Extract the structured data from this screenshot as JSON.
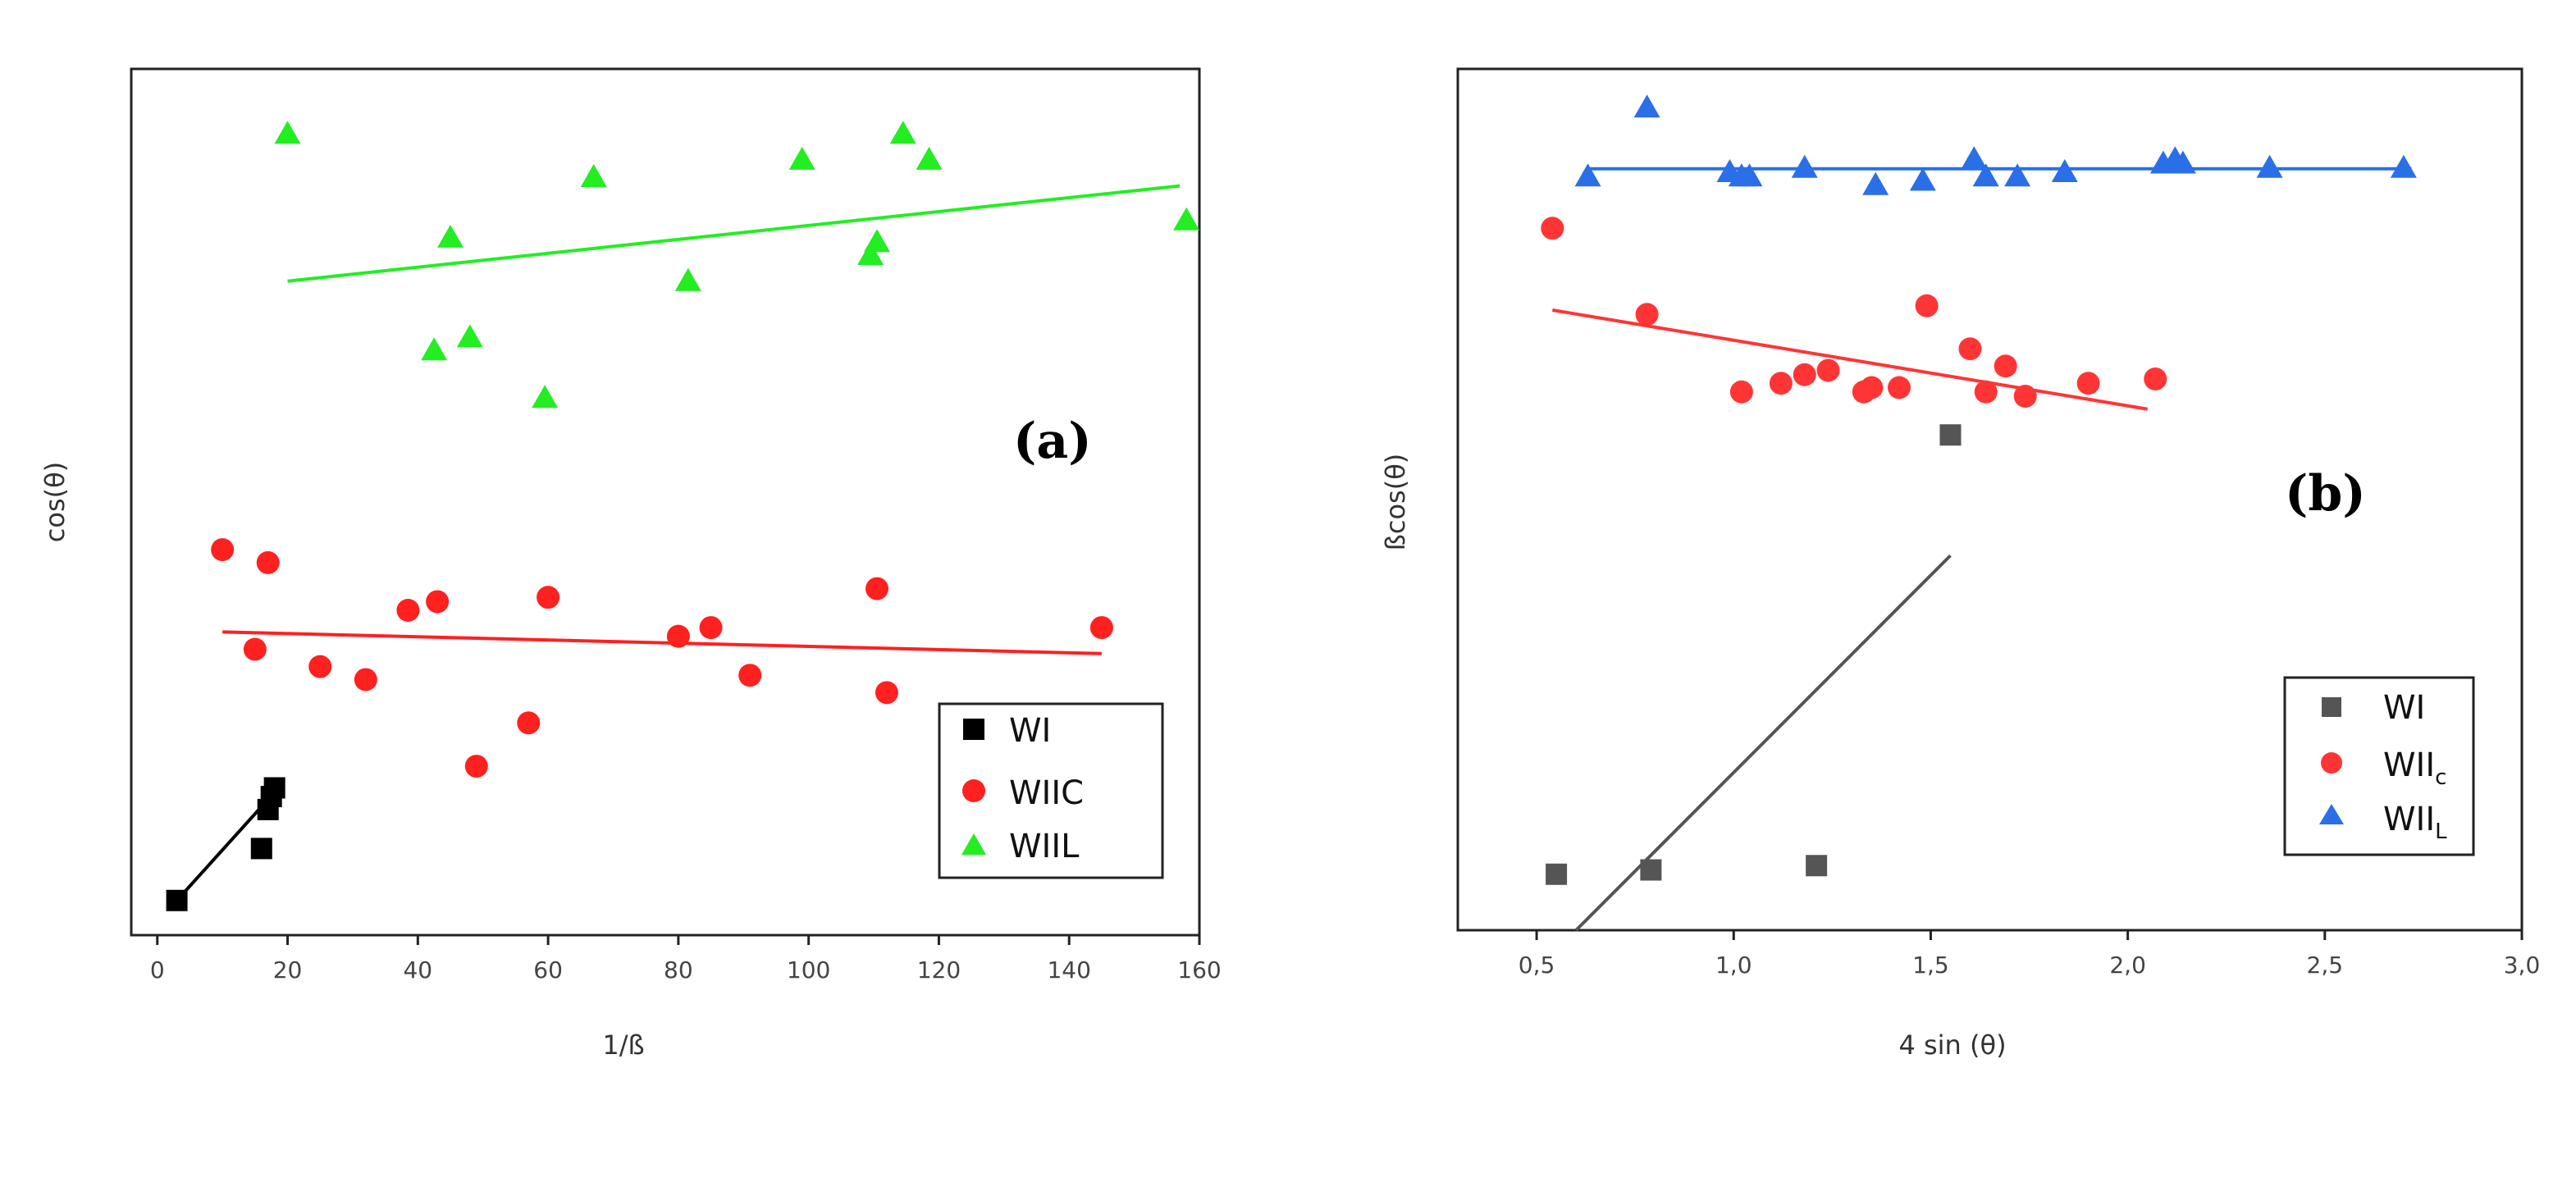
{
  "chart_data": [
    {
      "type": "scatter",
      "panel_label": "(a)",
      "title": "",
      "xlabel": "1/ß",
      "ylabel": "cos(θ)",
      "xlim": [
        -4,
        160
      ],
      "ylim": [
        0,
        1
      ],
      "xticks": [
        0,
        20,
        40,
        60,
        80,
        100,
        120,
        140,
        160
      ],
      "xtick_labels": [
        "0",
        "20",
        "40",
        "60",
        "80",
        "100",
        "120",
        "140",
        "160"
      ],
      "y_ticks_visible": false,
      "legend_position": "bottom-right",
      "series": [
        {
          "name": "WI",
          "marker": "square",
          "color": "#000000",
          "points": [
            [
              3,
              0.04
            ],
            [
              16,
              0.1
            ],
            [
              17,
              0.145
            ],
            [
              17.5,
              0.16
            ],
            [
              18,
              0.17
            ]
          ],
          "fit": [
            [
              3,
              0.04
            ],
            [
              18,
              0.165
            ]
          ]
        },
        {
          "name": "WIIC",
          "marker": "circle",
          "color": "#ff2020",
          "points": [
            [
              10,
              0.445
            ],
            [
              17,
              0.43
            ],
            [
              15,
              0.33
            ],
            [
              25,
              0.31
            ],
            [
              32,
              0.295
            ],
            [
              38.5,
              0.375
            ],
            [
              43,
              0.385
            ],
            [
              49,
              0.195
            ],
            [
              57,
              0.245
            ],
            [
              60,
              0.39
            ],
            [
              80,
              0.345
            ],
            [
              85,
              0.355
            ],
            [
              91,
              0.3
            ],
            [
              110.5,
              0.4
            ],
            [
              112,
              0.28
            ],
            [
              145,
              0.355
            ]
          ],
          "fit": [
            [
              10,
              0.35
            ],
            [
              145,
              0.325
            ]
          ]
        },
        {
          "name": "WIIL",
          "marker": "triangle",
          "color": "#22ee22",
          "points": [
            [
              20,
              0.925
            ],
            [
              42.5,
              0.675
            ],
            [
              45,
              0.805
            ],
            [
              48,
              0.69
            ],
            [
              59.5,
              0.62
            ],
            [
              67,
              0.875
            ],
            [
              81.5,
              0.755
            ],
            [
              99,
              0.895
            ],
            [
              109.5,
              0.785
            ],
            [
              110.5,
              0.8
            ],
            [
              114.5,
              0.925
            ],
            [
              118.5,
              0.895
            ],
            [
              158,
              0.825
            ]
          ],
          "fit": [
            [
              20,
              0.755
            ],
            [
              157,
              0.865
            ]
          ]
        }
      ]
    },
    {
      "type": "scatter",
      "panel_label": "(b)",
      "title": "",
      "xlabel": "4 sin (θ)",
      "ylabel": "ßcos(θ)",
      "xlim": [
        0.3,
        3.0
      ],
      "ylim": [
        0,
        1
      ],
      "xticks": [
        0.5,
        1.0,
        1.5,
        2.0,
        2.5,
        3.0
      ],
      "xtick_labels": [
        "0,5",
        "1,0",
        "1,5",
        "2,0",
        "2,5",
        "3,0"
      ],
      "y_ticks_visible": false,
      "legend_position": "bottom-right",
      "series": [
        {
          "name": "WI",
          "marker": "square",
          "color": "#555555",
          "points": [
            [
              0.55,
              0.065
            ],
            [
              0.79,
              0.07
            ],
            [
              1.21,
              0.075
            ],
            [
              1.55,
              0.575
            ]
          ],
          "fit": [
            [
              0.6,
              0.0
            ],
            [
              1.55,
              0.435
            ]
          ]
        },
        {
          "name": "WIIC",
          "marker": "circle",
          "color": "#ff3535",
          "points": [
            [
              0.54,
              0.815
            ],
            [
              0.78,
              0.715
            ],
            [
              1.02,
              0.625
            ],
            [
              1.12,
              0.635
            ],
            [
              1.18,
              0.645
            ],
            [
              1.24,
              0.65
            ],
            [
              1.33,
              0.625
            ],
            [
              1.35,
              0.63
            ],
            [
              1.42,
              0.63
            ],
            [
              1.49,
              0.725
            ],
            [
              1.6,
              0.675
            ],
            [
              1.64,
              0.625
            ],
            [
              1.69,
              0.655
            ],
            [
              1.74,
              0.62
            ],
            [
              1.9,
              0.635
            ],
            [
              2.07,
              0.64
            ]
          ],
          "fit": [
            [
              0.54,
              0.72
            ],
            [
              2.05,
              0.605
            ]
          ]
        },
        {
          "name": "WIIL",
          "marker": "triangle",
          "color": "#2a6fe8",
          "points": [
            [
              0.78,
              0.955
            ],
            [
              0.63,
              0.875
            ],
            [
              0.99,
              0.88
            ],
            [
              1.02,
              0.875
            ],
            [
              1.04,
              0.875
            ],
            [
              1.18,
              0.885
            ],
            [
              1.36,
              0.865
            ],
            [
              1.48,
              0.87
            ],
            [
              1.61,
              0.895
            ],
            [
              1.64,
              0.875
            ],
            [
              1.72,
              0.875
            ],
            [
              1.84,
              0.88
            ],
            [
              2.09,
              0.89
            ],
            [
              2.12,
              0.895
            ],
            [
              2.14,
              0.89
            ],
            [
              2.36,
              0.885
            ],
            [
              2.7,
              0.885
            ]
          ],
          "fit": [
            [
              0.63,
              0.884
            ],
            [
              2.72,
              0.884
            ]
          ]
        }
      ]
    }
  ],
  "legend_labels": {
    "a": [
      "WI",
      "WIIC",
      "WIIL"
    ],
    "b_base": [
      "WI",
      "WII",
      "WII"
    ],
    "b_sub": [
      "",
      "c",
      "L"
    ]
  }
}
